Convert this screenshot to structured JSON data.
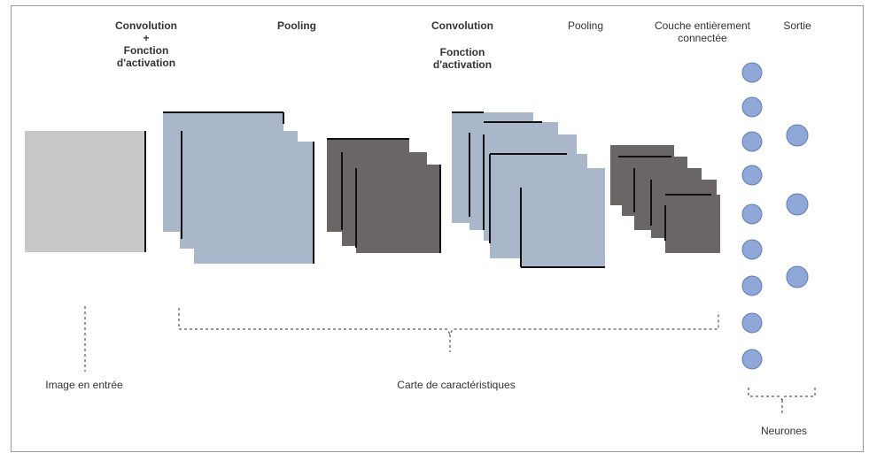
{
  "labels": {
    "conv1_line1": "Convolution",
    "conv1_line2": "+",
    "conv1_line3": "Fonction",
    "conv1_line4": "d'activation",
    "pool1": "Pooling",
    "conv2_line1": "Convolution",
    "conv2_line2": "Fonction",
    "conv2_line3": "d'activation",
    "pool2": "Pooling",
    "fc_line1": "Couche entièrement",
    "fc_line2": "connectée",
    "output": "Sortie",
    "input_image": "Image en entrée",
    "feature_maps": "Carte de caractéristiques",
    "neurons": "Neurones"
  },
  "colors": {
    "input_gray": "#c8c8c8",
    "conv_blue": "#aab7ca",
    "pool_dark": "#6b6666",
    "neuron_fill": "#8fa8d8",
    "neuron_stroke": "#5f7bb5",
    "dashed": "#555555",
    "edge": "#111111"
  },
  "fc_layer": {
    "neuron_count": 9
  },
  "output_layer": {
    "neuron_count": 3
  }
}
